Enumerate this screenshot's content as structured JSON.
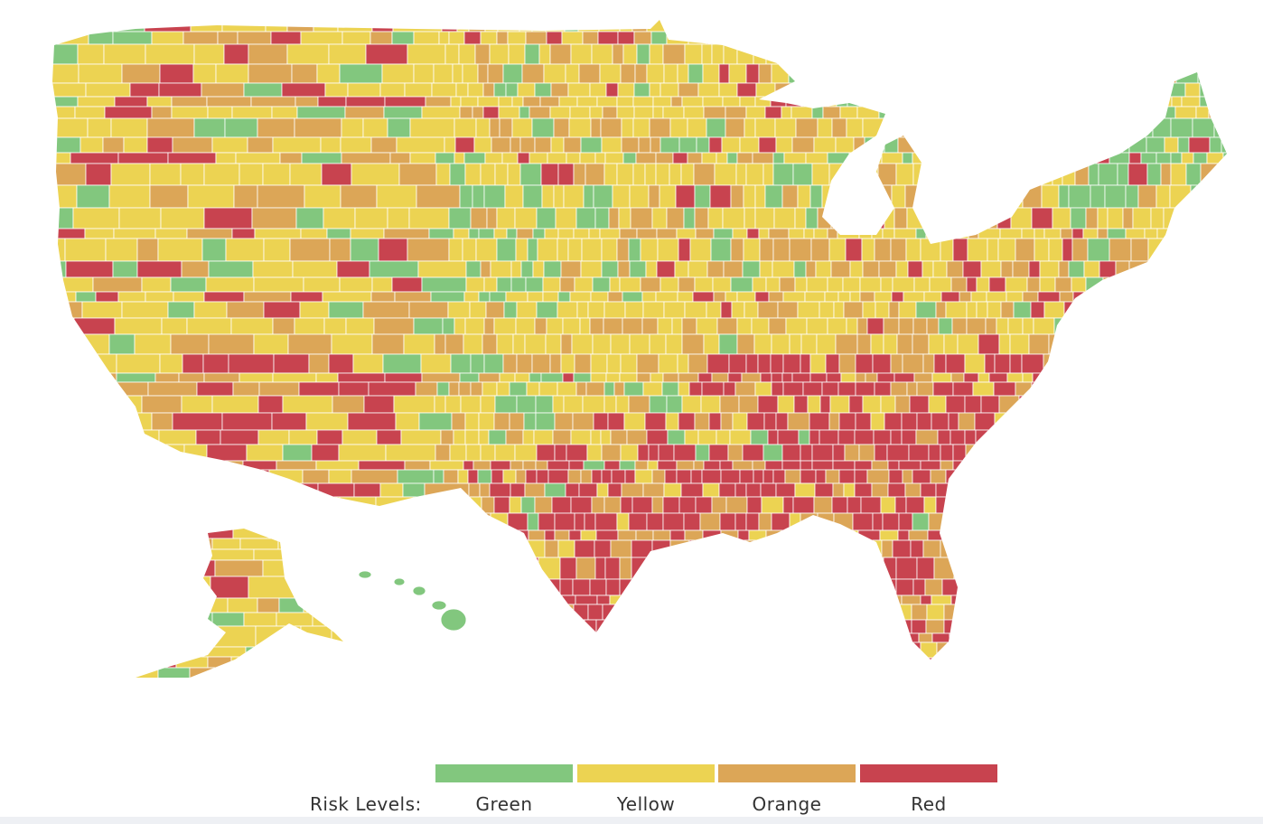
{
  "legend": {
    "title": "Risk Levels:",
    "levels": [
      {
        "label": "Green",
        "color": "#82c77e"
      },
      {
        "label": "Yellow",
        "color": "#ecd352"
      },
      {
        "label": "Orange",
        "color": "#dca657"
      },
      {
        "label": "Red",
        "color": "#c8434f"
      }
    ]
  },
  "map": {
    "regions": [
      "contiguous-us",
      "alaska",
      "hawaii"
    ],
    "border_color": "#ffffff"
  }
}
